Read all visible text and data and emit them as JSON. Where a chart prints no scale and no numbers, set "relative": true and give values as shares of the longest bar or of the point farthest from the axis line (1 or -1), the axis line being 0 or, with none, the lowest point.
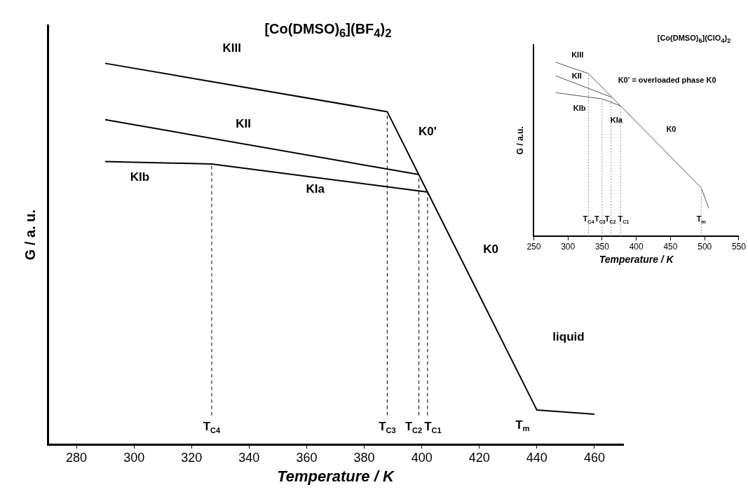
{
  "chart_data": [
    {
      "type": "line",
      "title": "[Co(DMSO)$_{6}$](BF$_{4}$)$_{2}$",
      "xlabel": "Temperature / K",
      "ylabel": "G / a. u.",
      "relative": true,
      "tick_labels": "x",
      "grid": false,
      "legend": false,
      "marker": "none",
      "xlim": [
        270,
        470
      ],
      "xticks": [
        280,
        300,
        320,
        340,
        360,
        380,
        400,
        420,
        440,
        460
      ],
      "series": [
        {
          "color": "#000000",
          "x": [
            290,
            388,
            440,
            460
          ],
          "values": [
            1.0,
            0.873,
            0.09,
            0.079
          ]
        },
        {
          "color": "#000000",
          "x": [
            290,
            399
          ],
          "values": [
            0.852,
            0.708
          ]
        },
        {
          "color": "#000000",
          "x": [
            290,
            327,
            402
          ],
          "values": [
            0.742,
            0.736,
            0.662
          ]
        }
      ],
      "ref_lines": [
        {
          "axis": "x",
          "value": 327,
          "label": "T$_{C4}$",
          "color": "#000000",
          "line_style": "dashed"
        },
        {
          "axis": "x",
          "value": 388,
          "label": "T$_{C3}$",
          "color": "#000000",
          "line_style": "dashed"
        },
        {
          "axis": "x",
          "value": 399,
          "label": "T$_{C2}$",
          "color": "#000000",
          "line_style": "dashed"
        },
        {
          "axis": "x",
          "value": 402,
          "label": "T$_{C1}$",
          "color": "#000000",
          "line_style": "dashed"
        }
      ],
      "annotations": [
        "KIII",
        "KII",
        "KIb",
        "KIa",
        "K0'",
        "K0",
        "liquid",
        "T$_{m}$"
      ]
    },
    {
      "type": "line",
      "title": "[Co(DMSO)$_{6}$](ClO$_{4}$)$_{2}$",
      "xlabel": "Temperature / K",
      "ylabel": "G / a.u.",
      "relative": true,
      "tick_labels": "x",
      "grid": false,
      "legend": false,
      "marker": "none",
      "xlim": [
        250,
        550
      ],
      "xticks": [
        250,
        300,
        350,
        400,
        450,
        500,
        550
      ],
      "series": [
        {
          "color": "#555555",
          "x": [
            282,
            330,
            377,
            495,
            506
          ],
          "values": [
            1.0,
            0.935,
            0.749,
            0.277,
            0.159
          ]
        },
        {
          "color": "#555555",
          "x": [
            282,
            363
          ],
          "values": [
            0.922,
            0.8
          ]
        },
        {
          "color": "#555555",
          "x": [
            282,
            350,
            377
          ],
          "values": [
            0.825,
            0.789,
            0.749
          ]
        }
      ],
      "ref_lines": [
        {
          "axis": "x",
          "value": 330,
          "label": "T$_{C4}$",
          "color": "#777777",
          "line_style": "dotted"
        },
        {
          "axis": "x",
          "value": 350,
          "label": "T$_{C3}$",
          "color": "#777777",
          "line_style": "dotted"
        },
        {
          "axis": "x",
          "value": 363,
          "label": "T$_{C2}$",
          "color": "#777777",
          "line_style": "dotted"
        },
        {
          "axis": "x",
          "value": 377,
          "label": "T$_{C1}$",
          "color": "#777777",
          "line_style": "dotted"
        },
        {
          "axis": "x",
          "value": 495,
          "label": "T$_{m}$",
          "color": "#777777",
          "line_style": "dotted"
        }
      ],
      "annotations": [
        "KIII",
        "KII",
        "KIb",
        "KIa",
        "K0",
        "K0' = overloaded phase K0"
      ]
    }
  ]
}
